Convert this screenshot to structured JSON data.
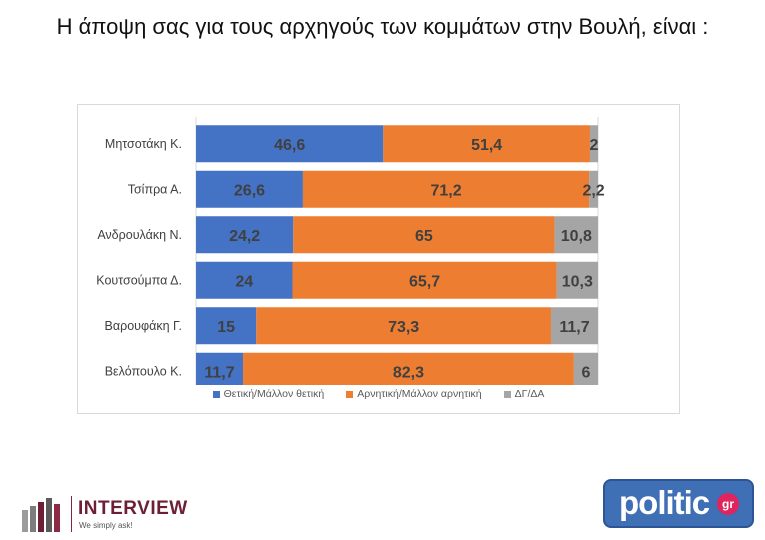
{
  "title": "Η άποψη σας για τους αρχηγούς των κομμάτων στην Βουλή,  είναι :",
  "chart_data": {
    "type": "bar",
    "orientation": "horizontal",
    "stacked": true,
    "title": "",
    "xlabel": "",
    "ylabel": "",
    "xlim": [
      0,
      100
    ],
    "grid": false,
    "legend_position": "bottom",
    "categories": [
      "Μητσοτάκη Κ.",
      "Τσίπρα Α.",
      "Ανδρουλάκη Ν.",
      "Κουτσούμπα Δ.",
      "Βαρουφάκη Γ.",
      "Βελόπουλο Κ."
    ],
    "series": [
      {
        "name": "Θετική/Μάλλον θετική",
        "color": "#4472c4",
        "values": [
          46.6,
          26.6,
          24.2,
          24,
          15,
          11.7
        ],
        "labels": [
          "46,6",
          "26,6",
          "24,2",
          "24",
          "15",
          "11,7"
        ]
      },
      {
        "name": "Αρνητική/Μάλλον αρνητική",
        "color": "#ed7d31",
        "values": [
          51.4,
          71.2,
          65,
          65.7,
          73.3,
          82.3
        ],
        "labels": [
          "51,4",
          "71,2",
          "65",
          "65,7",
          "73,3",
          "82,3"
        ]
      },
      {
        "name": "ΔΓ/ΔΑ",
        "color": "#a5a5a5",
        "values": [
          2,
          2.2,
          10.8,
          10.3,
          11.7,
          6
        ],
        "labels": [
          "2",
          "2,2",
          "10,8",
          "10,3",
          "11,7",
          "6"
        ]
      }
    ]
  },
  "logos": {
    "interview": {
      "word": "INTERVIEW",
      "tagline": "We simply ask!"
    },
    "politic": {
      "word": "politic",
      "badge": "gr"
    }
  }
}
